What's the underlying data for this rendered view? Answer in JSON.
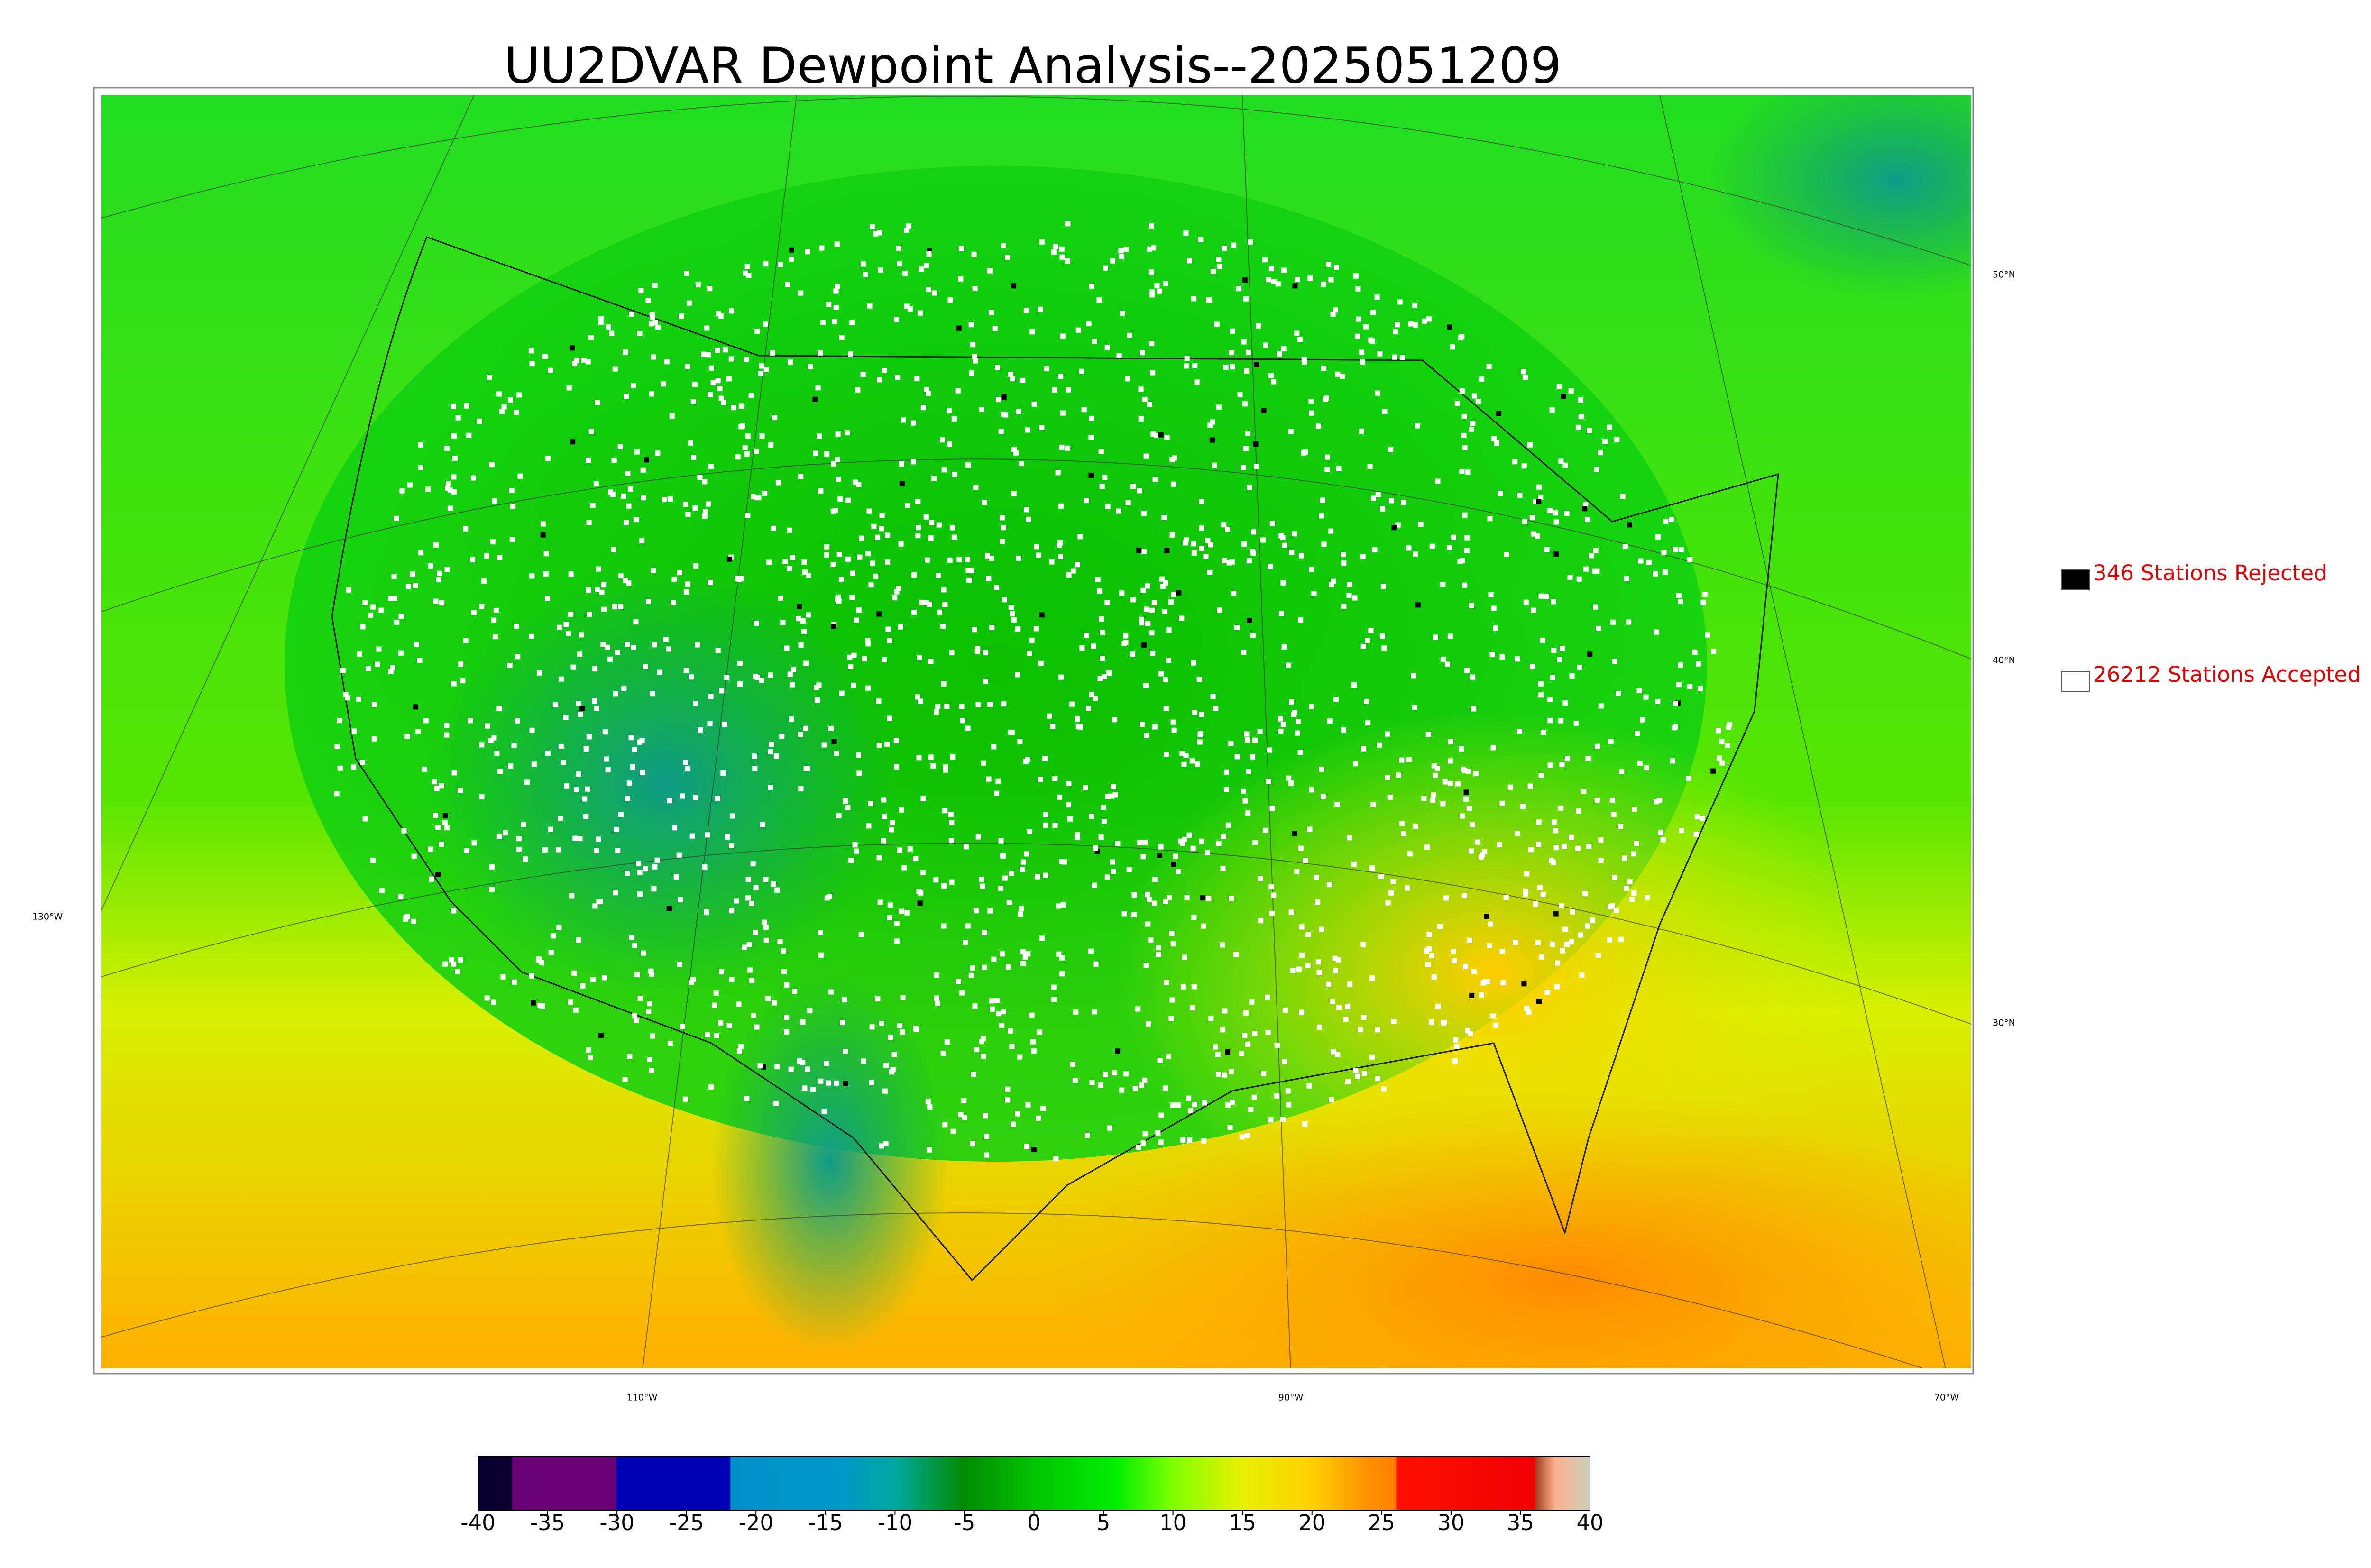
{
  "header": {
    "title": "UU2DVAR Dewpoint Analysis--2025051209"
  },
  "legend": [
    {
      "label": "346 Stations Rejected",
      "color": "#000000"
    },
    {
      "label": "26212 Stations Accepted",
      "color": "#ffffff"
    }
  ],
  "map": {
    "lat_labels": [
      "50°N",
      "40°N",
      "30°N"
    ],
    "lon_labels": [
      "130°W",
      "110°W",
      "90°W",
      "70°W"
    ]
  },
  "colorbar": {
    "range": [
      -40,
      40
    ],
    "ticks": [
      -40,
      -35,
      -30,
      -25,
      -20,
      -15,
      -10,
      -5,
      0,
      5,
      10,
      15,
      20,
      25,
      30,
      35,
      40
    ],
    "colormap": [
      {
        "value": -40,
        "color": "#0a0030"
      },
      {
        "value": -37.6,
        "color": "#0a0030"
      },
      {
        "value": -37.5,
        "color": "#6a0078"
      },
      {
        "value": -30.1,
        "color": "#6a0078"
      },
      {
        "value": -30,
        "color": "#0000b4"
      },
      {
        "value": -21.9,
        "color": "#0000b4"
      },
      {
        "value": -21.8,
        "color": "#0090c8"
      },
      {
        "value": -14,
        "color": "#0098c8"
      },
      {
        "value": -10,
        "color": "#00a8a0"
      },
      {
        "value": -5,
        "color": "#008c00"
      },
      {
        "value": 0,
        "color": "#00c400"
      },
      {
        "value": 6,
        "color": "#00f000"
      },
      {
        "value": 10,
        "color": "#80ff00"
      },
      {
        "value": 15,
        "color": "#e8f000"
      },
      {
        "value": 20,
        "color": "#ffd000"
      },
      {
        "value": 24,
        "color": "#ff9000"
      },
      {
        "value": 26,
        "color": "#ff8000"
      },
      {
        "value": 26.1,
        "color": "#ff1000"
      },
      {
        "value": 36,
        "color": "#f00000"
      },
      {
        "value": 36.1,
        "color": "#a04020"
      },
      {
        "value": 37.5,
        "color": "#ffb090"
      },
      {
        "value": 40,
        "color": "#c8d0b8"
      }
    ]
  }
}
